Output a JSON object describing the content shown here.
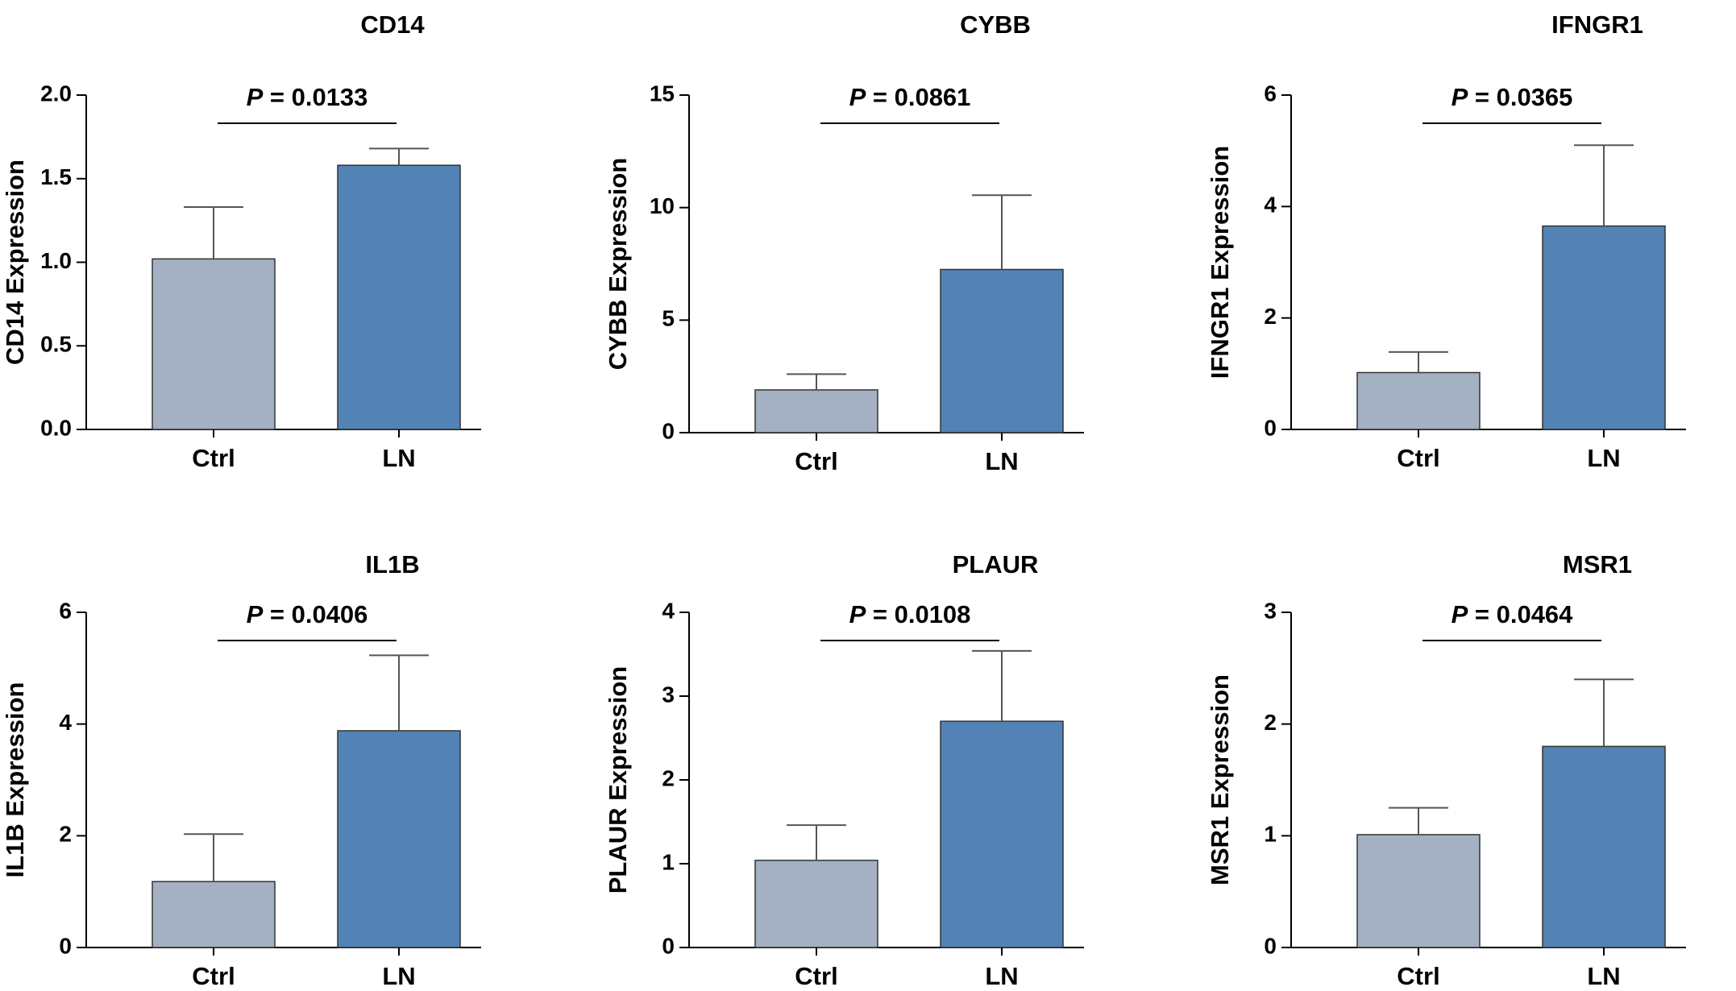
{
  "colors": {
    "ctrl": "#a3b1c2",
    "ln": "#5383b5",
    "axis": "#000000",
    "error": "#555555"
  },
  "chart_data": [
    {
      "type": "bar",
      "title": "CD14",
      "ylabel": "CD14 Expression",
      "categories": [
        "Ctrl",
        "LN"
      ],
      "values": [
        1.02,
        1.58
      ],
      "errors": [
        0.31,
        0.1
      ],
      "ylim": [
        0,
        2.0
      ],
      "yticks": [
        0,
        0.5,
        1.0,
        1.5,
        2.0
      ],
      "ytick_labels": [
        "0.0",
        "0.5",
        "1.0",
        "1.5",
        "2.0"
      ],
      "pvalue": {
        "label": "P",
        "text": " = 0.0133"
      }
    },
    {
      "type": "bar",
      "title": "CYBB",
      "ylabel": "CYBB Expression",
      "categories": [
        "Ctrl",
        "LN"
      ],
      "values": [
        1.9,
        7.25
      ],
      "errors": [
        0.7,
        3.3
      ],
      "ylim": [
        0,
        15
      ],
      "yticks": [
        0,
        5,
        10,
        15
      ],
      "ytick_labels": [
        "0",
        "5",
        "10",
        "15"
      ],
      "pvalue": {
        "label": "P",
        "text": " = 0.0861"
      }
    },
    {
      "type": "bar",
      "title": "IFNGR1",
      "ylabel": "IFNGR1 Expression",
      "categories": [
        "Ctrl",
        "LN"
      ],
      "values": [
        1.02,
        3.65
      ],
      "errors": [
        0.37,
        1.45
      ],
      "ylim": [
        0,
        6
      ],
      "yticks": [
        0,
        2,
        4,
        6
      ],
      "ytick_labels": [
        "0",
        "2",
        "4",
        "6"
      ],
      "pvalue": {
        "label": "P",
        "text": " = 0.0365"
      }
    },
    {
      "type": "bar",
      "title": "IL1B",
      "ylabel": "IL1B Expression",
      "categories": [
        "Ctrl",
        "LN"
      ],
      "values": [
        1.18,
        3.88
      ],
      "errors": [
        0.85,
        1.35
      ],
      "ylim": [
        0,
        6
      ],
      "yticks": [
        0,
        2,
        4,
        6
      ],
      "ytick_labels": [
        "0",
        "2",
        "4",
        "6"
      ],
      "pvalue": {
        "label": "P",
        "text": " = 0.0406"
      }
    },
    {
      "type": "bar",
      "title": "PLAUR",
      "ylabel": "PLAUR Expression",
      "categories": [
        "Ctrl",
        "LN"
      ],
      "values": [
        1.04,
        2.7
      ],
      "errors": [
        0.42,
        0.84
      ],
      "ylim": [
        0,
        4
      ],
      "yticks": [
        0,
        1,
        2,
        3,
        4
      ],
      "ytick_labels": [
        "0",
        "1",
        "2",
        "3",
        "4"
      ],
      "pvalue": {
        "label": "P",
        "text": " = 0.0108"
      }
    },
    {
      "type": "bar",
      "title": "MSR1",
      "ylabel": "MSR1 Expression",
      "categories": [
        "Ctrl",
        "LN"
      ],
      "values": [
        1.01,
        1.8
      ],
      "errors": [
        0.24,
        0.6
      ],
      "ylim": [
        0,
        3
      ],
      "yticks": [
        0,
        1,
        2,
        3
      ],
      "ytick_labels": [
        "0",
        "1",
        "2",
        "3"
      ],
      "pvalue": {
        "label": "P",
        "text": " = 0.0464"
      }
    }
  ]
}
